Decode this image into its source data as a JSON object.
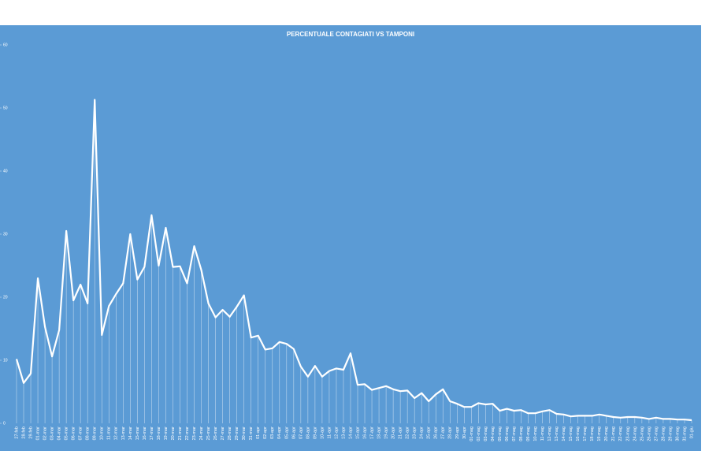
{
  "chart_data": {
    "type": "line",
    "title": "PERCENTUALE CONTAGIATI VS TAMPONI",
    "categories": [
      "27-feb",
      "28-feb",
      "29-feb",
      "01-mar",
      "02-mar",
      "03-mar",
      "04-mar",
      "05-mar",
      "06-mar",
      "07-mar",
      "08-mar",
      "09-mar",
      "10-mar",
      "11-mar",
      "12-mar",
      "13-mar",
      "14-mar",
      "15-mar",
      "16-mar",
      "17-mar",
      "18-mar",
      "19-mar",
      "20-mar",
      "21-mar",
      "22-mar",
      "23-mar",
      "24-mar",
      "25-mar",
      "26-mar",
      "27-mar",
      "28-mar",
      "29-mar",
      "30-mar",
      "31-mar",
      "01-apr",
      "02-apr",
      "03-apr",
      "04-apr",
      "05-apr",
      "06-apr",
      "07-apr",
      "08-apr",
      "09-apr",
      "10-apr",
      "11-apr",
      "12-apr",
      "13-apr",
      "14-apr",
      "15-apr",
      "16-apr",
      "17-apr",
      "18-apr",
      "19-apr",
      "20-apr",
      "21-apr",
      "22-apr",
      "23-apr",
      "24-apr",
      "25-apr",
      "26-apr",
      "27-apr",
      "28-apr",
      "29-apr",
      "30-apr",
      "01-mag",
      "02-mag",
      "03-mag",
      "04-mag",
      "05-mag",
      "06-mag",
      "07-mag",
      "08-mag",
      "09-mag",
      "10-mag",
      "11-mag",
      "12-mag",
      "13-mag",
      "14-mag",
      "15-mag",
      "16-mag",
      "17-mag",
      "18-mag",
      "19-mag",
      "20-mag",
      "21-mag",
      "22-mag",
      "23-mag",
      "24-mag",
      "25-mag",
      "26-mag",
      "27-mag",
      "28-mag",
      "29-mag",
      "30-mag",
      "31-mag",
      "01-giu"
    ],
    "values": [
      10.2,
      6.4,
      7.9,
      23,
      15.3,
      10.6,
      14.8,
      30.5,
      19.5,
      22,
      19,
      51.3,
      14,
      18.6,
      20.5,
      22.2,
      30,
      22.8,
      24.8,
      33,
      25,
      31,
      24.8,
      24.9,
      22.2,
      28.1,
      24.3,
      19,
      16.8,
      18,
      16.9,
      18.5,
      20.3,
      13.6,
      13.9,
      11.7,
      11.9,
      12.9,
      12.6,
      11.8,
      9,
      7.4,
      9.1,
      7.4,
      8.3,
      8.7,
      8.5,
      11.1,
      6.1,
      6.2,
      5.3,
      5.6,
      5.9,
      5.4,
      5.1,
      5.2,
      4,
      4.8,
      3.5,
      4.6,
      5.4,
      3.5,
      3.1,
      2.6,
      2.6,
      3.2,
      3,
      3.1,
      2,
      2.3,
      2,
      2.1,
      1.6,
      1.6,
      1.9,
      2.1,
      1.5,
      1.4,
      1.1,
      1.2,
      1.2,
      1.2,
      1.4,
      1.2,
      1,
      0.9,
      1,
      1,
      0.9,
      0.7,
      0.9,
      0.7,
      0.7,
      0.6,
      0.6,
      0.5
    ],
    "color": "#ffffff",
    "background": "#5b9bd5",
    "drop_lines": true,
    "ylim": [
      0,
      60
    ],
    "yticks": [
      0,
      10,
      20,
      30,
      40,
      50,
      60
    ]
  }
}
